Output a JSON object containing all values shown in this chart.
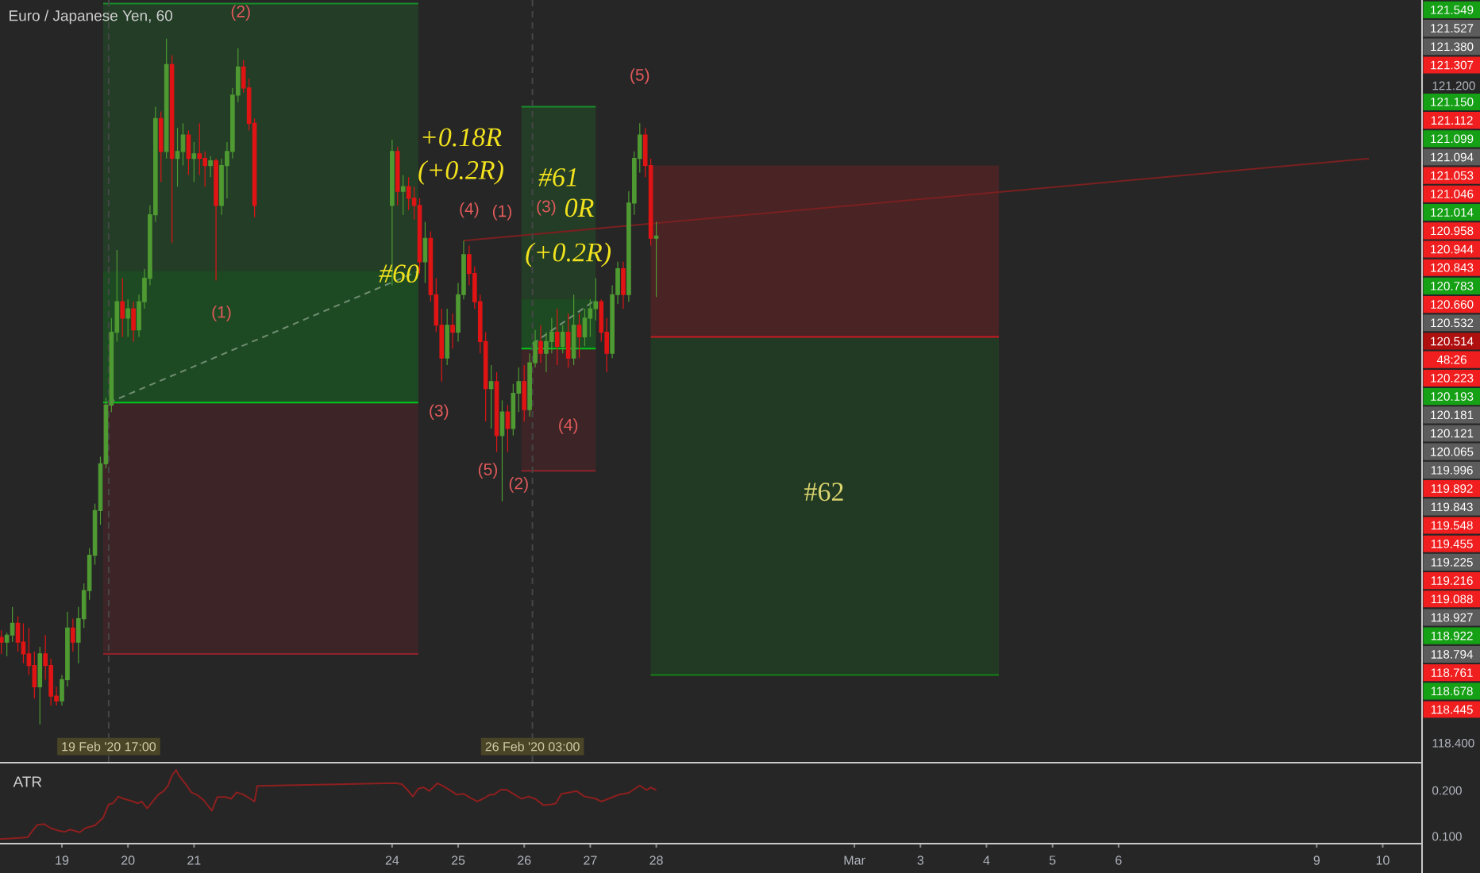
{
  "chart_data": [
    {
      "type": "candlestick",
      "title": "Euro / Japanese Yen, 60",
      "x": [
        "2020-02-18T02:00",
        "2020-02-18T04:00",
        "2020-02-18T06:00",
        "2020-02-18T08:00",
        "2020-02-18T10:00",
        "2020-02-18T12:00",
        "2020-02-18T14:00",
        "2020-02-18T16:00",
        "2020-02-18T18:00",
        "2020-02-18T20:00",
        "2020-02-18T22:00",
        "2020-02-19T00:00",
        "2020-02-19T02:00",
        "2020-02-19T04:00",
        "2020-02-19T06:00",
        "2020-02-19T08:00",
        "2020-02-19T10:00",
        "2020-02-19T12:00",
        "2020-02-19T14:00",
        "2020-02-19T16:00",
        "2020-02-19T18:00",
        "2020-02-19T20:00",
        "2020-02-19T22:00",
        "2020-02-20T00:00",
        "2020-02-20T02:00",
        "2020-02-20T04:00",
        "2020-02-20T06:00",
        "2020-02-20T08:00",
        "2020-02-20T10:00",
        "2020-02-20T12:00",
        "2020-02-20T14:00",
        "2020-02-20T16:00",
        "2020-02-20T18:00",
        "2020-02-20T20:00",
        "2020-02-20T22:00",
        "2020-02-21T00:00",
        "2020-02-21T02:00",
        "2020-02-21T04:00",
        "2020-02-21T06:00",
        "2020-02-21T08:00",
        "2020-02-21T10:00",
        "2020-02-21T12:00",
        "2020-02-21T14:00",
        "2020-02-21T16:00",
        "2020-02-21T18:00",
        "2020-02-21T20:00",
        "2020-02-21T22:00",
        "2020-02-24T00:00",
        "2020-02-24T02:00",
        "2020-02-24T04:00",
        "2020-02-24T06:00",
        "2020-02-24T08:00",
        "2020-02-24T10:00",
        "2020-02-24T12:00",
        "2020-02-24T14:00",
        "2020-02-24T16:00",
        "2020-02-24T18:00",
        "2020-02-24T20:00",
        "2020-02-24T22:00",
        "2020-02-25T00:00",
        "2020-02-25T02:00",
        "2020-02-25T04:00",
        "2020-02-25T06:00",
        "2020-02-25T08:00",
        "2020-02-25T10:00",
        "2020-02-25T12:00",
        "2020-02-25T14:00",
        "2020-02-25T16:00",
        "2020-02-25T18:00",
        "2020-02-25T20:00",
        "2020-02-25T22:00",
        "2020-02-26T00:00",
        "2020-02-26T02:00",
        "2020-02-26T04:00",
        "2020-02-26T06:00",
        "2020-02-26T08:00",
        "2020-02-26T10:00",
        "2020-02-26T12:00",
        "2020-02-26T14:00",
        "2020-02-26T16:00",
        "2020-02-26T18:00",
        "2020-02-26T20:00",
        "2020-02-26T22:00",
        "2020-02-27T00:00",
        "2020-02-27T02:00",
        "2020-02-27T04:00",
        "2020-02-27T06:00",
        "2020-02-27T08:00",
        "2020-02-27T10:00",
        "2020-02-27T12:00",
        "2020-02-27T14:00",
        "2020-02-27T16:00",
        "2020-02-27T18:00",
        "2020-02-27T20:00",
        "2020-02-27T22:00",
        "2020-02-28T00:00"
      ],
      "ohlc": [
        [
          118.85,
          118.88,
          118.78,
          118.83
        ],
        [
          118.83,
          118.87,
          118.77,
          118.86
        ],
        [
          118.86,
          118.98,
          118.83,
          118.91
        ],
        [
          118.91,
          118.94,
          118.79,
          118.83
        ],
        [
          118.83,
          118.91,
          118.74,
          118.78
        ],
        [
          118.78,
          118.89,
          118.69,
          118.73
        ],
        [
          118.73,
          118.79,
          118.59,
          118.64
        ],
        [
          118.64,
          118.81,
          118.48,
          118.78
        ],
        [
          118.78,
          118.86,
          118.67,
          118.73
        ],
        [
          118.73,
          118.76,
          118.56,
          118.6
        ],
        [
          118.6,
          118.64,
          118.56,
          118.58
        ],
        [
          118.58,
          118.69,
          118.56,
          118.67
        ],
        [
          118.67,
          118.96,
          118.64,
          118.89
        ],
        [
          118.89,
          118.93,
          118.79,
          118.83
        ],
        [
          118.83,
          118.98,
          118.74,
          118.93
        ],
        [
          118.93,
          119.08,
          118.89,
          119.05
        ],
        [
          119.05,
          119.23,
          119.01,
          119.2
        ],
        [
          119.2,
          119.42,
          119.16,
          119.39
        ],
        [
          119.39,
          119.62,
          119.33,
          119.59
        ],
        [
          119.59,
          119.87,
          119.57,
          119.84
        ],
        [
          119.84,
          120.21,
          119.81,
          120.15
        ],
        [
          120.15,
          120.5,
          120.11,
          120.28
        ],
        [
          120.28,
          120.38,
          120.13,
          120.21
        ],
        [
          120.21,
          120.29,
          120.13,
          120.25
        ],
        [
          120.25,
          120.28,
          120.11,
          120.16
        ],
        [
          120.16,
          120.31,
          120.13,
          120.28
        ],
        [
          120.28,
          120.42,
          120.25,
          120.38
        ],
        [
          120.38,
          120.69,
          120.35,
          120.65
        ],
        [
          120.65,
          121.11,
          120.62,
          121.06
        ],
        [
          121.06,
          121.09,
          120.79,
          120.92
        ],
        [
          120.92,
          121.4,
          120.89,
          121.29
        ],
        [
          121.29,
          121.33,
          120.53,
          120.89
        ],
        [
          120.89,
          121.02,
          120.77,
          120.92
        ],
        [
          120.92,
          121.04,
          120.86,
          120.99
        ],
        [
          120.99,
          121.01,
          120.82,
          120.89
        ],
        [
          120.89,
          120.96,
          120.79,
          120.91
        ],
        [
          120.91,
          121.04,
          120.82,
          120.89
        ],
        [
          120.89,
          120.92,
          120.77,
          120.86
        ],
        [
          120.86,
          120.9,
          120.81,
          120.88
        ],
        [
          120.88,
          120.89,
          120.37,
          120.69
        ],
        [
          120.69,
          120.89,
          120.65,
          120.86
        ],
        [
          120.86,
          120.96,
          120.72,
          120.92
        ],
        [
          120.92,
          121.19,
          120.89,
          121.16
        ],
        [
          121.16,
          121.36,
          121.13,
          121.28
        ],
        [
          121.28,
          121.31,
          121.17,
          121.19
        ],
        [
          121.19,
          121.23,
          121.01,
          121.04
        ],
        [
          121.04,
          121.06,
          120.64,
          120.69
        ],
        [
          120.69,
          120.97,
          120.35,
          120.92
        ],
        [
          120.92,
          120.94,
          120.69,
          120.75
        ],
        [
          120.75,
          120.82,
          120.65,
          120.77
        ],
        [
          120.77,
          120.81,
          120.67,
          120.72
        ],
        [
          120.72,
          120.77,
          120.63,
          120.69
        ],
        [
          120.69,
          120.72,
          120.4,
          120.45
        ],
        [
          120.45,
          120.62,
          120.36,
          120.55
        ],
        [
          120.55,
          120.58,
          120.28,
          120.31
        ],
        [
          120.31,
          120.38,
          120.15,
          120.18
        ],
        [
          120.18,
          120.25,
          119.94,
          120.04
        ],
        [
          120.04,
          120.25,
          120.01,
          120.18
        ],
        [
          120.18,
          120.23,
          120.08,
          120.15
        ],
        [
          120.15,
          120.36,
          120.11,
          120.31
        ],
        [
          120.31,
          120.54,
          120.29,
          120.48
        ],
        [
          120.48,
          120.52,
          120.35,
          120.4
        ],
        [
          120.4,
          120.43,
          120.25,
          120.28
        ],
        [
          120.28,
          120.31,
          120.06,
          120.11
        ],
        [
          120.11,
          120.15,
          119.77,
          119.91
        ],
        [
          119.91,
          120.01,
          119.74,
          119.94
        ],
        [
          119.94,
          119.98,
          119.64,
          119.71
        ],
        [
          119.71,
          119.86,
          119.43,
          119.81
        ],
        [
          119.81,
          119.84,
          119.64,
          119.74
        ],
        [
          119.74,
          119.93,
          119.71,
          119.89
        ],
        [
          119.89,
          120.0,
          119.81,
          119.94
        ],
        [
          119.94,
          120.01,
          119.77,
          119.82
        ],
        [
          119.82,
          120.06,
          119.79,
          120.02
        ],
        [
          120.02,
          120.16,
          120.0,
          120.11
        ],
        [
          120.11,
          120.18,
          120.02,
          120.06
        ],
        [
          120.06,
          120.15,
          119.98,
          120.11
        ],
        [
          120.11,
          120.21,
          120.06,
          120.15
        ],
        [
          120.15,
          120.25,
          120.01,
          120.09
        ],
        [
          120.09,
          120.18,
          120.06,
          120.15
        ],
        [
          120.15,
          120.23,
          120.0,
          120.04
        ],
        [
          120.04,
          120.31,
          120.01,
          120.18
        ],
        [
          120.18,
          120.23,
          120.04,
          120.13
        ],
        [
          120.13,
          120.25,
          120.09,
          120.21
        ],
        [
          120.21,
          120.29,
          120.13,
          120.25
        ],
        [
          120.25,
          120.38,
          120.2,
          120.28
        ],
        [
          120.28,
          120.29,
          120.11,
          120.15
        ],
        [
          120.15,
          120.21,
          119.98,
          120.06
        ],
        [
          120.06,
          120.35,
          120.04,
          120.31
        ],
        [
          120.31,
          120.45,
          120.27,
          120.42
        ],
        [
          120.42,
          120.45,
          120.25,
          120.31
        ],
        [
          120.31,
          120.75,
          120.28,
          120.7
        ],
        [
          120.7,
          120.92,
          120.65,
          120.89
        ],
        [
          120.89,
          121.04,
          120.83,
          120.99
        ],
        [
          120.99,
          121.02,
          120.81,
          120.86
        ],
        [
          120.86,
          120.89,
          120.52,
          120.55
        ],
        [
          120.55,
          120.62,
          120.3,
          120.56
        ]
      ],
      "series": [
        {
          "type": "line",
          "x": [
            "2020-02-19T15:00",
            "2020-02-24T09:30"
          ],
          "values": [
            121.55,
            121.55
          ],
          "lower": [
            119.85,
            119.85
          ],
          "upper": [
            121.55,
            121.55
          ],
          "color": "#188f2b"
        },
        {
          "type": "line",
          "x": [
            "2020-02-19T15:00",
            "2020-02-24T09:30"
          ],
          "values": [
            118.78,
            118.78
          ],
          "lower": [
            118.78,
            118.78
          ],
          "upper": [
            119.85,
            119.85
          ],
          "color": "#8f222b"
        },
        {
          "type": "line",
          "x": [
            "2020-02-19T15:00",
            "2020-02-24T09:30"
          ],
          "values": [
            119.85,
            119.85
          ],
          "lower": [
            119.85,
            119.85
          ],
          "upper": [
            120.41,
            120.41
          ],
          "color": "#02ca18"
        },
        {
          "type": "line",
          "x": [
            "2020-02-25T23:00",
            "2020-02-27T02:00"
          ],
          "values": [
            121.11,
            121.11
          ],
          "lower": [
            120.08,
            120.08
          ],
          "upper": [
            121.11,
            121.11
          ],
          "color": "#188f2b"
        },
        {
          "type": "line",
          "x": [
            "2020-02-25T23:00",
            "2020-02-27T02:00"
          ],
          "values": [
            119.56,
            119.56
          ],
          "lower": [
            119.56,
            119.56
          ],
          "upper": [
            120.08,
            120.08
          ],
          "color": "#8f222b"
        },
        {
          "type": "line",
          "x": [
            "2020-02-25T23:00",
            "2020-02-27T02:00"
          ],
          "values": [
            120.08,
            120.08
          ],
          "lower": [
            120.08,
            120.08
          ],
          "upper": [
            120.29,
            120.29
          ],
          "color": "#02ca18"
        },
        {
          "type": "line",
          "x": [
            "2020-02-27T22:00",
            "2020-03-04T04:30"
          ],
          "values": [
            120.13,
            120.13
          ],
          "lower": [
            120.13,
            120.13
          ],
          "upper": [
            120.86,
            120.86
          ],
          "color": "#ca1821"
        },
        {
          "type": "line",
          "x": [
            "2020-02-27T22:00",
            "2020-03-04T04:30"
          ],
          "values": [
            118.69,
            118.69
          ],
          "lower": [
            118.69,
            118.69
          ],
          "upper": [
            120.13,
            120.13
          ],
          "color": "#148118"
        },
        {
          "type": "line",
          "x": [
            "2020-02-19T17:00",
            "2020-02-24T09:30"
          ],
          "values": [
            119.85,
            120.41
          ],
          "color": "#6f8d72",
          "line_style": "dashed"
        },
        {
          "type": "line",
          "x": [
            "2020-02-26T03:00",
            "2020-02-27T01:00"
          ],
          "values": [
            120.1,
            120.28
          ],
          "color": "#7d8f7d",
          "line_style": "dashed"
        },
        {
          "type": "line",
          "x": [
            "2020-02-25T02:00",
            "2020-03-09T19:00"
          ],
          "values": [
            120.54,
            120.89
          ],
          "color": "#7a2020"
        }
      ],
      "ref_lines": [
        {
          "axis": "x",
          "value": "2020-02-19T17:00",
          "label": "19 Feb '20 17:00",
          "color": "#464646",
          "line_style": "dashed"
        },
        {
          "axis": "x",
          "value": "2020-02-26T03:00",
          "label": "26 Feb '20 03:00",
          "color": "#464646",
          "line_style": "dashed"
        }
      ],
      "annotations": [
        "(2)",
        "(1)",
        "#60",
        "+0.18R",
        "(+0.2R)",
        "(4)",
        "(1)",
        "(3)",
        "(5)",
        "(2)",
        "#61",
        "(3)",
        "0R",
        "(+0.2R)",
        "(4)",
        "(5)",
        "#62",
        "121.549",
        "121.527",
        "121.380",
        "121.307",
        "121.150",
        "121.112",
        "121.099",
        "121.094",
        "121.053",
        "121.046",
        "121.014",
        "120.958",
        "120.944",
        "120.843",
        "120.783",
        "120.660",
        "120.532",
        "120.514",
        "48:26",
        "120.223",
        "120.193",
        "120.181",
        "120.121",
        "120.065",
        "119.996",
        "119.892",
        "119.843",
        "119.548",
        "119.455",
        "119.225",
        "119.216",
        "119.088",
        "118.927",
        "118.922",
        "118.794",
        "118.761",
        "118.678",
        "118.445"
      ],
      "xlim": [
        "2020-02-18T01:30",
        "2020-03-10T14:00"
      ],
      "ylim": [
        118.32,
        121.565
      ],
      "yticks": [
        {
          "value": 121.2,
          "label": "121.200"
        },
        {
          "value": 118.4,
          "label": "118.400"
        }
      ],
      "tick_labels": "y"
    },
    {
      "type": "line",
      "title": "ATR",
      "x": [
        "2020-02-18T01:30",
        "2020-02-18T06:30",
        "2020-02-18T11:30",
        "2020-02-18T15:00",
        "2020-02-18T17:30",
        "2020-02-18T20:00",
        "2020-02-18T22:30",
        "2020-02-19T01:00",
        "2020-02-19T03:00",
        "2020-02-19T06:30",
        "2020-02-19T08:30",
        "2020-02-19T12:00",
        "2020-02-19T15:00",
        "2020-02-19T17:00",
        "2020-02-19T18:30",
        "2020-02-19T20:30",
        "2020-02-19T22:30",
        "2020-02-20T02:00",
        "2020-02-20T03:30",
        "2020-02-20T05:00",
        "2020-02-20T07:00",
        "2020-02-20T09:00",
        "2020-02-20T11:00",
        "2020-02-20T13:00",
        "2020-02-20T14:30",
        "2020-02-20T16:00",
        "2020-02-20T17:30",
        "2020-02-20T18:30",
        "2020-02-20T21:00",
        "2020-02-20T23:00",
        "2020-02-21T01:00",
        "2020-02-21T03:30",
        "2020-02-21T06:30",
        "2020-02-21T08:30",
        "2020-02-21T11:30",
        "2020-02-21T13:30",
        "2020-02-21T15:30",
        "2020-02-21T18:00",
        "2020-02-21T20:30",
        "2020-02-21T22:00",
        "2020-02-21T23:00",
        "2020-02-24T01:00",
        "2020-02-24T03:30",
        "2020-02-24T05:30",
        "2020-02-24T07:30",
        "2020-02-24T09:30",
        "2020-02-24T11:30",
        "2020-02-24T13:30",
        "2020-02-24T16:30",
        "2020-02-24T18:30",
        "2020-02-24T21:30",
        "2020-02-24T23:30",
        "2020-02-25T02:00",
        "2020-02-25T04:30",
        "2020-02-25T07:00",
        "2020-02-25T09:00",
        "2020-02-25T11:30",
        "2020-02-25T13:00",
        "2020-02-25T15:30",
        "2020-02-25T17:30",
        "2020-02-25T20:00",
        "2020-02-25T23:00",
        "2020-02-26T01:30",
        "2020-02-26T04:00",
        "2020-02-26T07:00",
        "2020-02-26T10:00",
        "2020-02-26T11:30",
        "2020-02-26T13:30",
        "2020-02-26T16:30",
        "2020-02-26T19:00",
        "2020-02-26T22:00",
        "2020-02-27T00:30",
        "2020-02-27T02:00",
        "2020-02-27T04:00",
        "2020-02-27T10:30",
        "2020-02-27T14:00",
        "2020-02-27T18:00",
        "2020-02-27T20:30",
        "2020-02-27T22:00",
        "2020-02-28T00:00"
      ],
      "series": [
        {
          "color": "#8e1f1f",
          "values": [
            0.094,
            0.096,
            0.098,
            0.125,
            0.127,
            0.118,
            0.113,
            0.11,
            0.115,
            0.109,
            0.118,
            0.124,
            0.141,
            0.17,
            0.172,
            0.187,
            0.182,
            0.176,
            0.172,
            0.176,
            0.161,
            0.176,
            0.191,
            0.199,
            0.21,
            0.233,
            0.245,
            0.233,
            0.214,
            0.196,
            0.191,
            0.179,
            0.156,
            0.186,
            0.186,
            0.182,
            0.196,
            0.191,
            0.182,
            0.176,
            0.21,
            0.216,
            0.214,
            0.202,
            0.187,
            0.204,
            0.207,
            0.199,
            0.216,
            0.21,
            0.199,
            0.191,
            0.193,
            0.184,
            0.176,
            0.182,
            0.191,
            0.191,
            0.202,
            0.202,
            0.193,
            0.182,
            0.187,
            0.182,
            0.168,
            0.17,
            0.172,
            0.193,
            0.196,
            0.199,
            0.187,
            0.184,
            0.182,
            0.176,
            0.191,
            0.195,
            0.211,
            0.201,
            0.207,
            0.201
          ]
        }
      ],
      "xlim": [
        "2020-02-18T01:30",
        "2020-03-10T14:00"
      ],
      "xticks": [
        {
          "value": "2020-02-19",
          "label": "19"
        },
        {
          "value": "2020-02-20",
          "label": "20"
        },
        {
          "value": "2020-02-21",
          "label": "21"
        },
        {
          "value": "2020-02-24",
          "label": "24"
        },
        {
          "value": "2020-02-25",
          "label": "25"
        },
        {
          "value": "2020-02-26",
          "label": "26"
        },
        {
          "value": "2020-02-27",
          "label": "27"
        },
        {
          "value": "2020-02-28",
          "label": "28"
        },
        {
          "value": "2020-03-02",
          "label": "Mar"
        },
        {
          "value": "2020-03-03",
          "label": "3"
        },
        {
          "value": "2020-03-04",
          "label": "4"
        },
        {
          "value": "2020-03-05",
          "label": "5"
        },
        {
          "value": "2020-03-06",
          "label": "6"
        },
        {
          "value": "2020-03-09",
          "label": "9"
        },
        {
          "value": "2020-03-10",
          "label": "10"
        }
      ],
      "ylim": [
        0.086,
        0.259
      ],
      "yticks": [
        {
          "value": 0.2,
          "label": "0.200"
        },
        {
          "value": 0.1,
          "label": "0.100"
        }
      ]
    }
  ]
}
